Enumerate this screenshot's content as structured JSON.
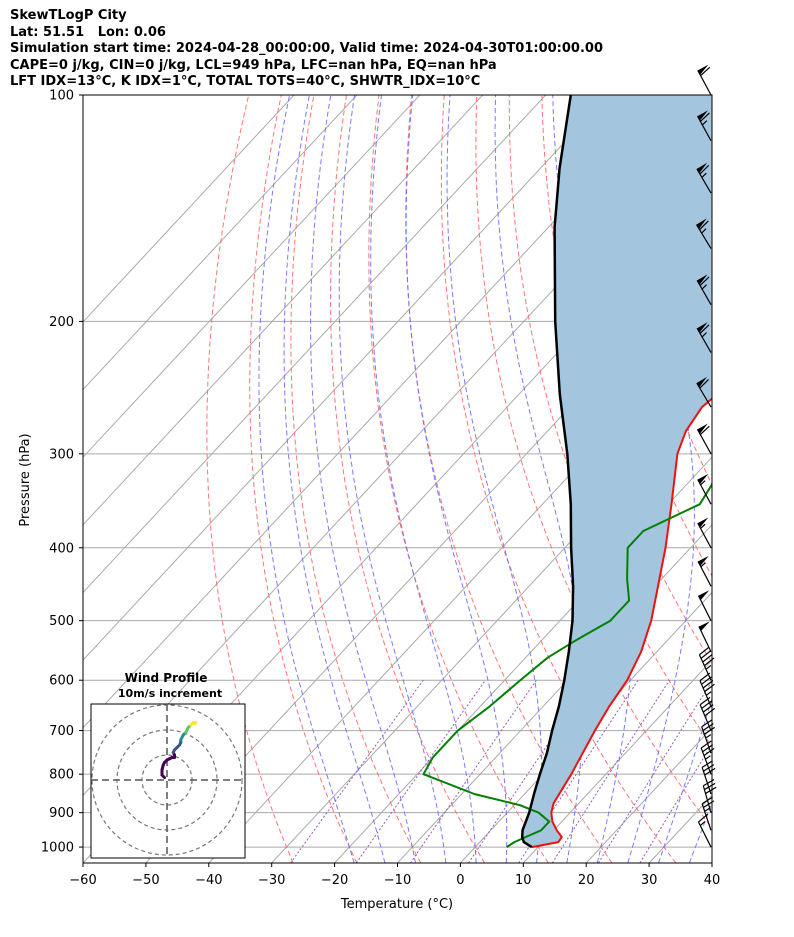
{
  "header": {
    "line1": "SkewTLogP City",
    "line2": "Lat: 51.51   Lon: 0.06",
    "line3": "Simulation start time: 2024-04-28_00:00:00, Valid time: 2024-04-30T01:00:00.00",
    "line4": "CAPE=0 j/kg, CIN=0 j/kg, LCL=949 hPa, LFC=nan hPa, EQ=nan hPa",
    "line5": "LFT IDX=13°C, K IDX=1°C, TOTAL TOTS=40°C, SHWTR_IDX=10°C"
  },
  "chart_data": {
    "type": "line",
    "subtype": "skew-t log-p",
    "xlabel": "Temperature (°C)",
    "ylabel": "Pressure (hPa)",
    "xlim": [
      -60,
      40
    ],
    "ylim": [
      1050,
      100
    ],
    "yscale": "log",
    "x_ticks": [
      -60,
      -50,
      -40,
      -30,
      -20,
      -10,
      0,
      10,
      20,
      30,
      40
    ],
    "x_tick_labels": [
      "−60",
      "−50",
      "−40",
      "−30",
      "−20",
      "−10",
      "0",
      "10",
      "20",
      "30",
      "40"
    ],
    "y_ticks": [
      1000,
      900,
      800,
      700,
      600,
      500,
      400,
      300,
      200,
      100
    ],
    "y_tick_labels": [
      "1000",
      "900",
      "800",
      "700",
      "600",
      "500",
      "400",
      "300",
      "200",
      "100"
    ],
    "grid": true,
    "colors": {
      "temperature": "#ee1111",
      "dewpoint": "#008000",
      "parcel": "#000000",
      "shade": "#a3c6de",
      "dry_adiabat": "#ff6666",
      "moist_adiabat": "#6a6aff",
      "mixing_ratio": "#9b59b6",
      "isotherm": "#aaaaaa"
    },
    "series": [
      {
        "name": "Temperature",
        "p": [
          1000,
          985,
          970,
          950,
          925,
          900,
          875,
          850,
          800,
          750,
          700,
          650,
          600,
          550,
          500,
          450,
          400,
          350,
          300,
          280,
          260,
          250,
          240,
          220,
          200,
          180,
          170,
          160,
          150,
          140,
          130,
          120,
          110,
          100
        ],
        "t": [
          9,
          12.5,
          12.3,
          10.5,
          8.5,
          7,
          6,
          5.5,
          4.5,
          3.2,
          1.8,
          0.5,
          -0.5,
          -2.5,
          -5.5,
          -9.5,
          -14,
          -19.5,
          -26,
          -28,
          -29,
          -28.5,
          -27.5,
          -24.5,
          -20.5,
          -13,
          -9,
          -5.5,
          -2,
          1,
          4,
          7,
          10,
          13
        ]
      },
      {
        "name": "Dewpoint",
        "p": [
          1000,
          985,
          970,
          950,
          925,
          900,
          880,
          850,
          800,
          760,
          700,
          650,
          600,
          560,
          530,
          500,
          470,
          440,
          400,
          380,
          350,
          300,
          270,
          240,
          220,
          200,
          190,
          180,
          170,
          150,
          130,
          110,
          100
        ],
        "t": [
          5,
          5.5,
          6.5,
          8,
          8,
          5,
          1,
          -8,
          -19,
          -20,
          -20,
          -18.5,
          -17.5,
          -16.5,
          -14.5,
          -12,
          -12,
          -15.5,
          -20,
          -20,
          -15,
          -17.5,
          -21,
          -16,
          -14.5,
          -15.5,
          -17,
          -20,
          -24,
          -24.5,
          -22,
          -19,
          -18
        ]
      },
      {
        "name": "Parcel",
        "p": [
          1000,
          985,
          970,
          949,
          900,
          850,
          800,
          750,
          700,
          650,
          600,
          550,
          500,
          450,
          400,
          350,
          300,
          250,
          200,
          150,
          125,
          100
        ],
        "t": [
          9,
          7,
          6,
          5,
          3.5,
          1.5,
          -0.5,
          -2.5,
          -5,
          -7.5,
          -10.5,
          -14,
          -18,
          -23,
          -29,
          -35.5,
          -43.5,
          -53.5,
          -65,
          -79,
          -87,
          -96
        ]
      }
    ],
    "wind_barbs": {
      "p": [
        1000,
        950,
        900,
        850,
        800,
        750,
        700,
        650,
        600,
        550,
        500,
        450,
        400,
        350,
        300,
        260,
        220,
        190,
        160,
        135,
        115,
        100
      ],
      "u_ms": [
        3,
        4,
        4,
        5,
        6,
        6,
        8,
        9,
        10,
        11,
        12,
        13,
        14,
        14,
        15,
        16,
        16,
        16,
        17,
        17,
        16,
        15
      ],
      "v_ms": [
        6,
        12,
        14,
        15,
        16,
        17,
        19,
        21,
        22,
        23,
        24,
        25,
        26,
        26,
        27,
        27,
        28,
        28,
        28,
        29,
        29,
        28
      ]
    },
    "hodograph": {
      "title": "Wind Profile",
      "subtitle": "10m/s increment",
      "ring_increment_ms": 10,
      "rings_ms": [
        10,
        20,
        30
      ],
      "u_ms": [
        -1,
        -2,
        -2,
        -1.5,
        -1,
        0,
        1,
        2,
        3,
        3,
        2.5,
        3,
        4,
        5,
        5.5,
        5.5,
        6,
        6.5,
        7,
        7.5,
        8,
        8.5,
        9,
        9.5,
        10,
        10.5,
        11,
        11.5
      ],
      "v_ms": [
        1,
        2,
        4,
        6,
        7,
        8,
        8.5,
        9,
        9,
        10,
        11,
        12,
        13,
        14,
        15,
        16,
        17,
        18,
        18.5,
        19,
        20,
        21,
        21.5,
        22,
        22.5,
        23,
        22.5,
        23
      ]
    }
  }
}
